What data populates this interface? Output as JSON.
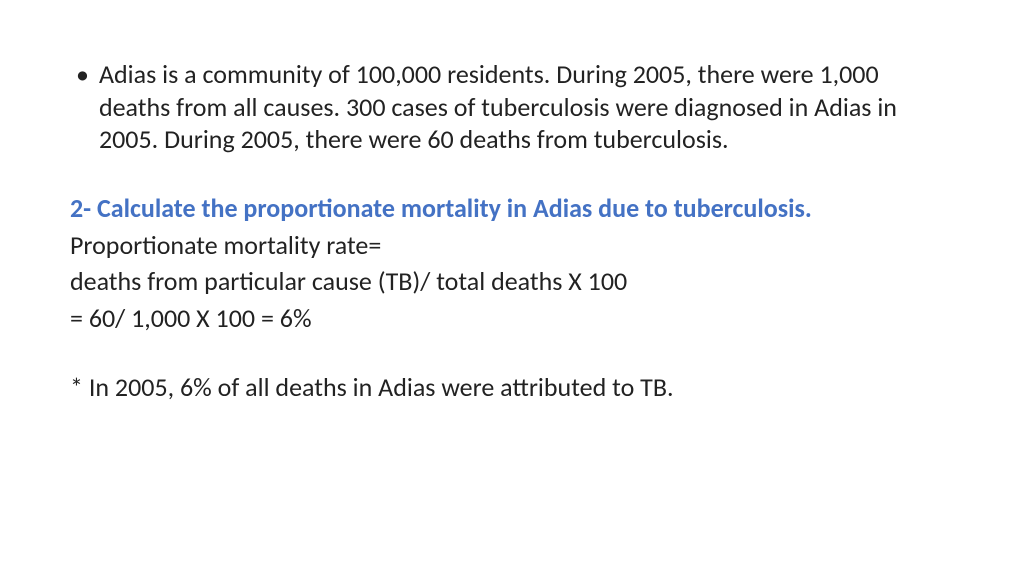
{
  "colors": {
    "text_primary": "#222222",
    "text_accent": "#4472c4",
    "background": "#ffffff"
  },
  "typography": {
    "body_fontsize": 26,
    "heading_fontsize": 26,
    "heading_weight": "bold",
    "line_height": 1.25,
    "font_family": "Calibri"
  },
  "content": {
    "bullet_marker": "•",
    "scenario_text": "Adias is a community of 100,000 residents. During 2005, there were 1,000 deaths from all causes. 300 cases of tuberculosis were diagnosed in Adias in 2005. During 2005, there were 60 deaths from tuberculosis.",
    "question_heading": "2- Calculate the proportionate mortality in Adias due to tuberculosis.",
    "formula_label": "Proportionate mortality rate=",
    "formula_definition": "deaths from particular cause (TB)/ total deaths X 100",
    "calculation_result": "= 60/ 1,000 X 100 = 6%",
    "interpretation_note": "* In 2005, 6% of all deaths in Adias were attributed to TB."
  }
}
